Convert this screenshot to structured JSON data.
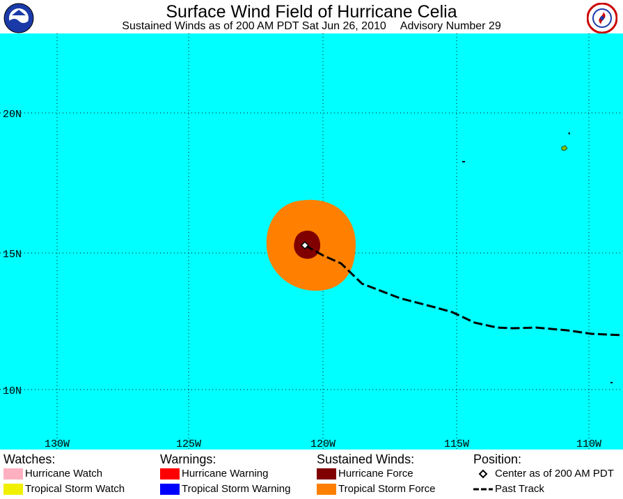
{
  "header": {
    "title": "Surface Wind Field of Hurricane Celia",
    "subtitle_time": "Sustained Winds as of 200 AM PDT Sat Jun 26, 2010",
    "subtitle_advisory": "Advisory Number 29"
  },
  "map": {
    "lat_labels": [
      "20N",
      "15N",
      "10N"
    ],
    "lon_labels": [
      "130W",
      "125W",
      "120W",
      "115W",
      "110W"
    ],
    "colors": {
      "ocean": "#00ffff",
      "tropical_storm_force": "#ff8000",
      "hurricane_force": "#800000",
      "land": "#80c000",
      "grid": "#000000"
    }
  },
  "legend": {
    "watches": {
      "heading": "Watches:",
      "items": [
        {
          "label": "Hurricane Watch",
          "color": "#ffb0c0"
        },
        {
          "label": "Tropical Storm Watch",
          "color": "#f0f000"
        }
      ]
    },
    "warnings": {
      "heading": "Warnings:",
      "items": [
        {
          "label": "Hurricane Warning",
          "color": "#ff0000"
        },
        {
          "label": "Tropical Storm Warning",
          "color": "#0000ff"
        }
      ]
    },
    "winds": {
      "heading": "Sustained Winds:",
      "items": [
        {
          "label": "Hurricane Force",
          "color": "#800000"
        },
        {
          "label": "Tropical Storm Force",
          "color": "#ff8000"
        }
      ]
    },
    "position": {
      "heading": "Position:",
      "items": [
        {
          "label": "Center as of 200 AM PDT",
          "icon": "diamond-icon"
        },
        {
          "label": "Past Track",
          "icon": "dashed-line-icon"
        }
      ]
    }
  }
}
